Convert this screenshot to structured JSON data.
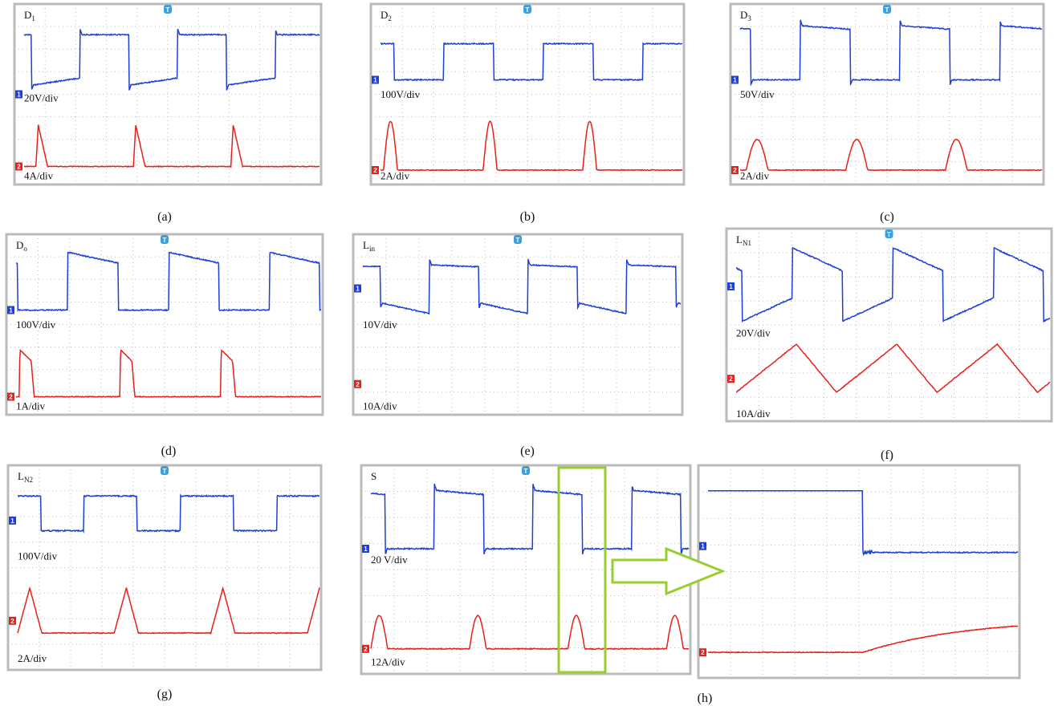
{
  "channel_markers": [
    "1",
    "2"
  ],
  "trigger": "T",
  "panels": [
    {
      "name": "D",
      "sub": "1",
      "ch1_scale": "20V/div",
      "ch2_scale": "4A/div",
      "caption": "(a)"
    },
    {
      "name": "D",
      "sub": "2",
      "ch1_scale": "100V/div",
      "ch2_scale": "2A/div",
      "caption": "(b)"
    },
    {
      "name": "D",
      "sub": "3",
      "ch1_scale": "50V/div",
      "ch2_scale": "2A/div",
      "caption": "(c)"
    },
    {
      "name": "D",
      "sub": "o",
      "ch1_scale": "100V/div",
      "ch2_scale": "1A/div",
      "caption": "(d)"
    },
    {
      "name": "L",
      "sub": "in",
      "ch1_scale": "10V/div",
      "ch2_scale": "10A/div",
      "caption": "(e)"
    },
    {
      "name": "L",
      "sub": "N1",
      "ch1_scale": "20V/div",
      "ch2_scale": "10A/div",
      "caption": "(f)"
    },
    {
      "name": "L",
      "sub": "N2",
      "ch1_scale": "100V/div",
      "ch2_scale": "2A/div",
      "caption": "(g)"
    },
    {
      "name": "S",
      "ch1_scale": "20 V/div",
      "ch2_scale": "12A/div",
      "caption": "(h)"
    }
  ]
}
